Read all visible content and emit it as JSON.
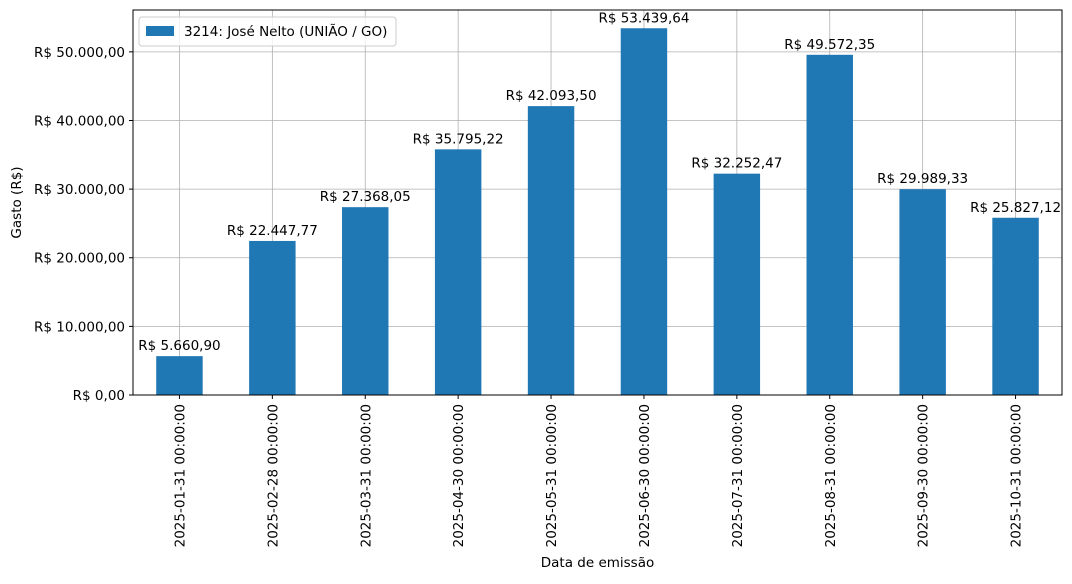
{
  "chart_data": {
    "type": "bar",
    "title": "",
    "xlabel": "Data de emissão",
    "ylabel": "Gasto (R$)",
    "categories": [
      "2025-01-31 00:00:00",
      "2025-02-28 00:00:00",
      "2025-03-31 00:00:00",
      "2025-04-30 00:00:00",
      "2025-05-31 00:00:00",
      "2025-06-30 00:00:00",
      "2025-07-31 00:00:00",
      "2025-08-31 00:00:00",
      "2025-09-30 00:00:00",
      "2025-10-31 00:00:00"
    ],
    "series": [
      {
        "name": "3214: José Nelto (UNIÃO / GO)",
        "color": "#1f77b4",
        "values": [
          5660.9,
          22447.77,
          27368.05,
          35795.22,
          42093.5,
          53439.64,
          32252.47,
          49572.35,
          29989.33,
          25827.12
        ],
        "data_labels": [
          "R$ 5.660,90",
          "R$ 22.447,77",
          "R$ 27.368,05",
          "R$ 35.795,22",
          "R$ 42.093,50",
          "R$ 53.439,64",
          "R$ 32.252,47",
          "R$ 49.572,35",
          "R$ 29.989,33",
          "R$ 25.827,12"
        ]
      }
    ],
    "yticks": [
      0,
      10000,
      20000,
      30000,
      40000,
      50000
    ],
    "ytick_labels": [
      "R$ 0,00",
      "R$ 10.000,00",
      "R$ 20.000,00",
      "R$ 30.000,00",
      "R$ 40.000,00",
      "R$ 50.000,00"
    ],
    "ylim": [
      0,
      56100
    ],
    "grid": true,
    "legend_position": "top-left"
  }
}
